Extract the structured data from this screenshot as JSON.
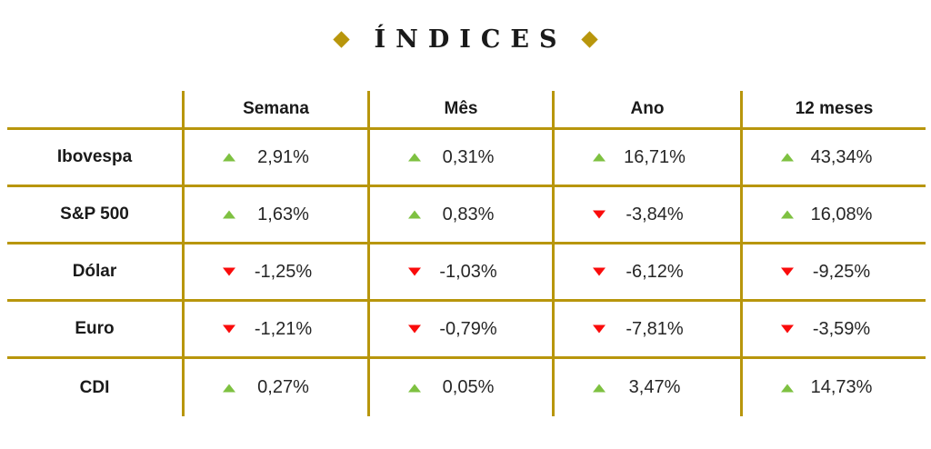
{
  "title": {
    "text": "ÍNDICES"
  },
  "colors": {
    "gold": "#B8960C",
    "up_green": "#7EC141",
    "down_red": "#FA0B0B",
    "text": "#1F1F1F"
  },
  "chart_data": {
    "type": "table",
    "title": "ÍNDICES",
    "columns": [
      "",
      "Semana",
      "Mês",
      "Ano",
      "12 meses"
    ],
    "rows": [
      {
        "label": "Ibovespa",
        "values": [
          {
            "dir": "up",
            "value": "2,91%"
          },
          {
            "dir": "up",
            "value": "0,31%"
          },
          {
            "dir": "up",
            "value": "16,71%"
          },
          {
            "dir": "up",
            "value": "43,34%"
          }
        ]
      },
      {
        "label": "S&P 500",
        "values": [
          {
            "dir": "up",
            "value": "1,63%"
          },
          {
            "dir": "up",
            "value": "0,83%"
          },
          {
            "dir": "down",
            "value": "-3,84%"
          },
          {
            "dir": "up",
            "value": "16,08%"
          }
        ]
      },
      {
        "label": "Dólar",
        "values": [
          {
            "dir": "down",
            "value": "-1,25%"
          },
          {
            "dir": "down",
            "value": "-1,03%"
          },
          {
            "dir": "down",
            "value": "-6,12%"
          },
          {
            "dir": "down",
            "value": "-9,25%"
          }
        ]
      },
      {
        "label": "Euro",
        "values": [
          {
            "dir": "down",
            "value": "-1,21%"
          },
          {
            "dir": "down",
            "value": "-0,79%"
          },
          {
            "dir": "down",
            "value": "-7,81%"
          },
          {
            "dir": "down",
            "value": "-3,59%"
          }
        ]
      },
      {
        "label": "CDI",
        "values": [
          {
            "dir": "up",
            "value": "0,27%"
          },
          {
            "dir": "up",
            "value": "0,05%"
          },
          {
            "dir": "up",
            "value": "3,47%"
          },
          {
            "dir": "up",
            "value": "14,73%"
          }
        ]
      }
    ]
  }
}
